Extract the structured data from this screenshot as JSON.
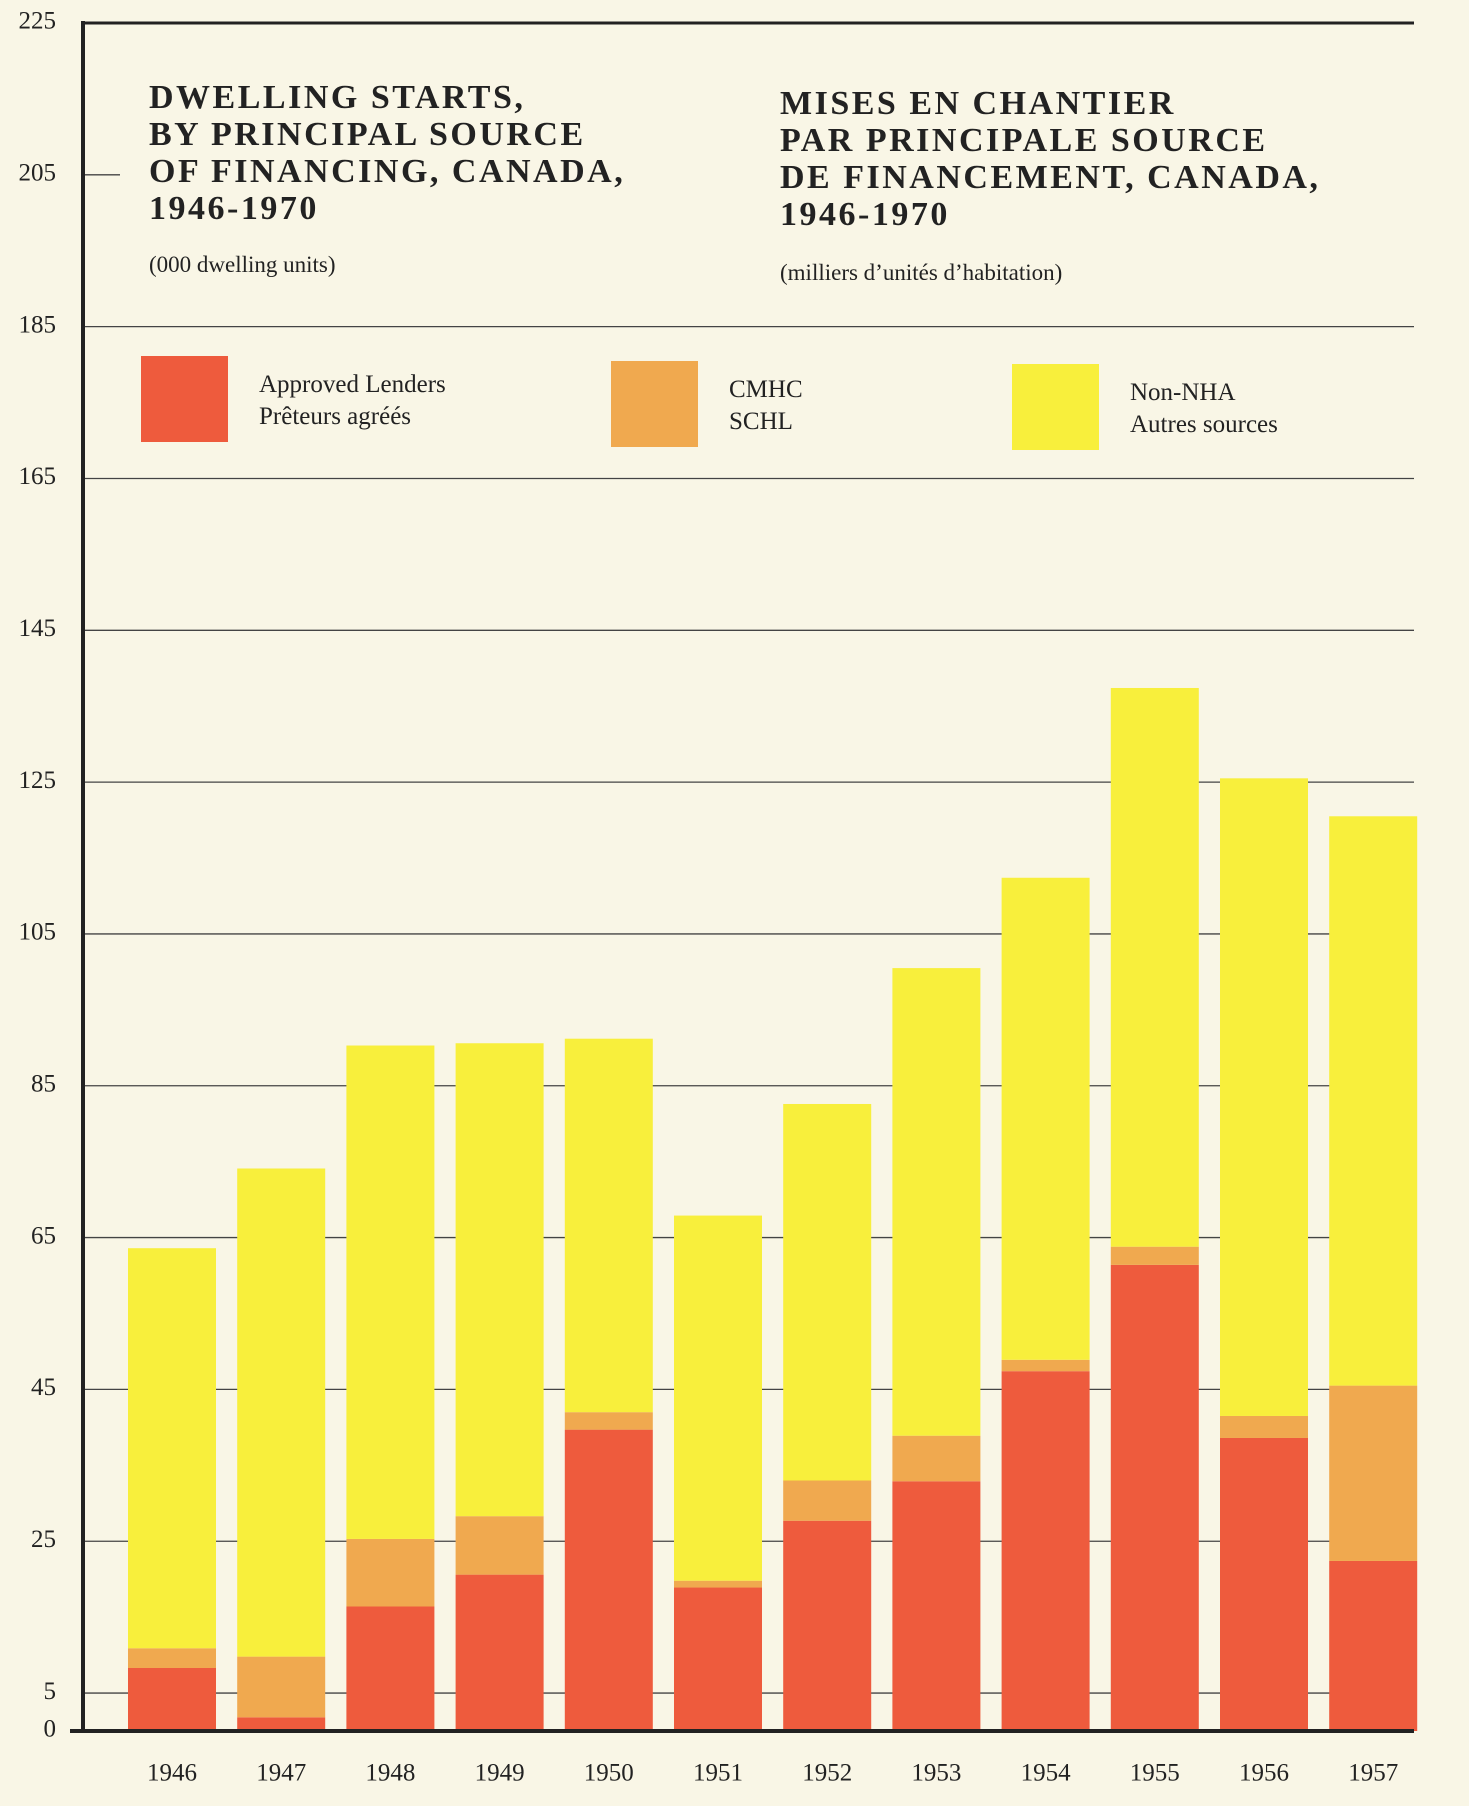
{
  "chart_data": {
    "type": "stacked-bar",
    "title": [
      "DWELLING STARTS,",
      "BY PRINCIPAL SOURCE",
      "OF FINANCING, CANADA,",
      "1946-1970"
    ],
    "title_fr": [
      "MISES EN CHANTIER",
      "PAR PRINCIPALE SOURCE",
      "DE FINANCEMENT, CANADA,",
      "1946-1970"
    ],
    "subtitle": "(000 dwelling units)",
    "subtitle_fr": "(milliers d’unités d’habitation)",
    "categories": [
      "1946",
      "1947",
      "1948",
      "1949",
      "1950",
      "1951",
      "1952",
      "1953",
      "1954",
      "1955",
      "1956",
      "1957"
    ],
    "series": [
      {
        "name": "Approved Lenders",
        "name_fr": "Prêteurs agréés",
        "color": "#ee5b3d",
        "values": [
          8.3,
          1.8,
          16.4,
          20.6,
          39.7,
          18.9,
          27.7,
          32.9,
          47.4,
          61.4,
          38.6,
          22.4
        ]
      },
      {
        "name": "CMHC",
        "name_fr": "SCHL",
        "color": "#f0a94f",
        "values": [
          2.6,
          8.0,
          8.9,
          7.7,
          2.3,
          0.9,
          5.3,
          6.0,
          1.5,
          2.4,
          2.9,
          23.1
        ]
      },
      {
        "name": "Non-NHA",
        "name_fr": "Autres sources",
        "color": "#f8ef3c",
        "values": [
          52.7,
          64.3,
          65.0,
          62.3,
          49.2,
          48.1,
          49.6,
          61.6,
          63.5,
          73.6,
          84.0,
          75.0
        ]
      }
    ],
    "ylim": [
      0,
      225
    ],
    "yticks": [
      0,
      5,
      25,
      45,
      65,
      85,
      105,
      125,
      145,
      165,
      185,
      205,
      225
    ],
    "grid": true
  }
}
